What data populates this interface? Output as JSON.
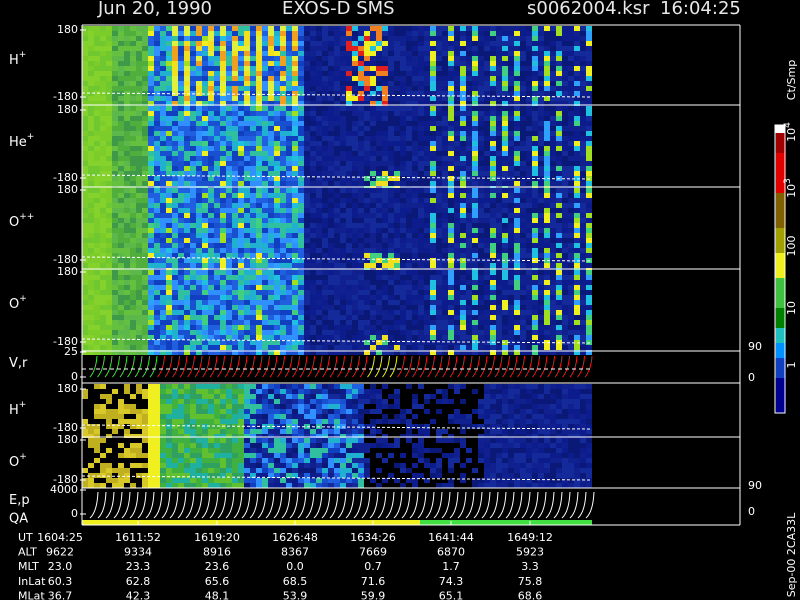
{
  "header": {
    "date": "Jun 20, 1990",
    "instrument": "EXOS-D SMS",
    "file": "s0062004.ksr",
    "time": "16:04:25"
  },
  "panels": [
    {
      "label": "H",
      "charge": "+",
      "ticks": [
        "180",
        "-180"
      ]
    },
    {
      "label": "He",
      "charge": "+",
      "ticks": [
        "180",
        "-180"
      ]
    },
    {
      "label": "O",
      "charge": "++",
      "ticks": [
        "180",
        "-180"
      ]
    },
    {
      "label": "O",
      "charge": "+",
      "ticks": [
        "180",
        "-180"
      ]
    },
    {
      "label": "V,r",
      "ticks": [
        "25",
        "0"
      ],
      "right_ticks": [
        "90",
        "0"
      ]
    },
    {
      "label": "H",
      "charge": "+",
      "ticks": [
        "180",
        "-180"
      ]
    },
    {
      "label": "O",
      "charge": "+",
      "ticks": [
        "180",
        "-180"
      ]
    },
    {
      "label": "E,p",
      "label2": "QA",
      "ticks": [
        "4000",
        "0"
      ],
      "right_ticks": [
        "90",
        "0"
      ]
    }
  ],
  "colorbar": {
    "unit": "Ct/Smp",
    "labels": [
      {
        "base": "10",
        "exp": "4"
      },
      {
        "base": "10",
        "exp": "3"
      },
      "100",
      "10",
      "1"
    ]
  },
  "table": {
    "rows": [
      [
        "UT",
        "1604:25",
        "1611:52",
        "1619:20",
        "1626:48",
        "1634:26",
        "1641:44",
        "1649:12"
      ],
      [
        "ALT",
        "9622",
        "9334",
        "8916",
        "8367",
        "7669",
        "6870",
        "5923"
      ],
      [
        "MLT",
        "23.0",
        "23.3",
        "23.6",
        "0.0",
        "0.7",
        "1.7",
        "3.3"
      ],
      [
        "InLat",
        "60.3",
        "62.8",
        "65.6",
        "68.5",
        "71.6",
        "74.3",
        "75.8"
      ],
      [
        "MLat",
        "36.7",
        "42.3",
        "48.1",
        "53.9",
        "59.9",
        "65.1",
        "68.6"
      ]
    ]
  },
  "footer": "Sep-00 2CA33L"
}
